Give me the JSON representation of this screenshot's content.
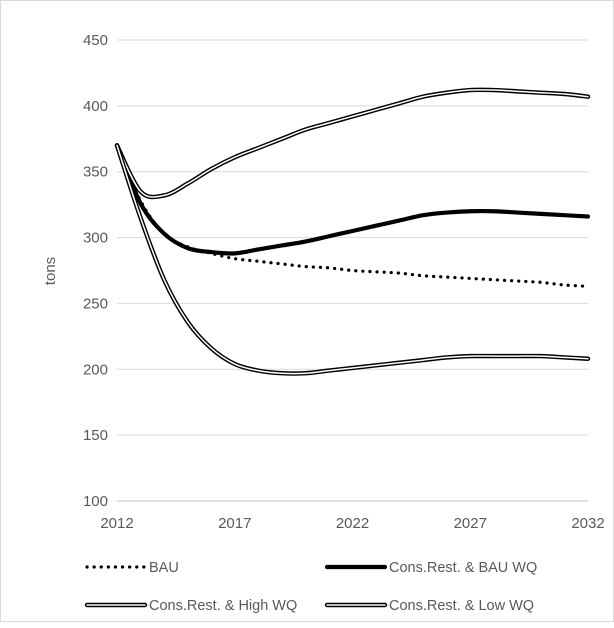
{
  "chart_data": {
    "type": "line",
    "title": "",
    "xlabel": "",
    "ylabel": "tons",
    "xlim": [
      2012,
      2032
    ],
    "ylim": [
      100,
      450
    ],
    "x_ticks": [
      2012,
      2017,
      2022,
      2027,
      2032
    ],
    "y_ticks": [
      100,
      150,
      200,
      250,
      300,
      350,
      400,
      450
    ],
    "grid": "horizontal",
    "legend_position": "bottom",
    "x": [
      2012,
      2013,
      2014,
      2015,
      2016,
      2017,
      2018,
      2019,
      2020,
      2021,
      2022,
      2023,
      2024,
      2025,
      2026,
      2027,
      2028,
      2029,
      2030,
      2031,
      2032
    ],
    "series": [
      {
        "name": "BAU",
        "style": "dotted",
        "color": "#000000",
        "values": [
          370,
          328,
          303,
          293,
          288,
          284,
          282,
          280,
          278,
          277,
          275,
          274,
          273,
          271,
          270,
          269,
          268,
          267,
          266,
          264,
          263
        ]
      },
      {
        "name": "Cons.Rest. & BAU WQ",
        "style": "thick",
        "color": "#000000",
        "values": [
          370,
          326,
          303,
          292,
          289,
          288,
          291,
          294,
          297,
          301,
          305,
          309,
          313,
          317,
          319,
          320,
          320,
          319,
          318,
          317,
          316
        ]
      },
      {
        "name": "Cons.Rest. & High WQ",
        "style": "double",
        "color": "#000000",
        "values": [
          370,
          335,
          332,
          341,
          352,
          361,
          368,
          375,
          382,
          387,
          392,
          397,
          402,
          407,
          410,
          412,
          412,
          411,
          410,
          409,
          407
        ]
      },
      {
        "name": "Cons.Rest. & Low WQ",
        "style": "double",
        "color": "#000000",
        "values": [
          370,
          315,
          268,
          236,
          216,
          204,
          199,
          197,
          197,
          199,
          201,
          203,
          205,
          207,
          209,
          210,
          210,
          210,
          210,
          209,
          208
        ]
      }
    ]
  }
}
